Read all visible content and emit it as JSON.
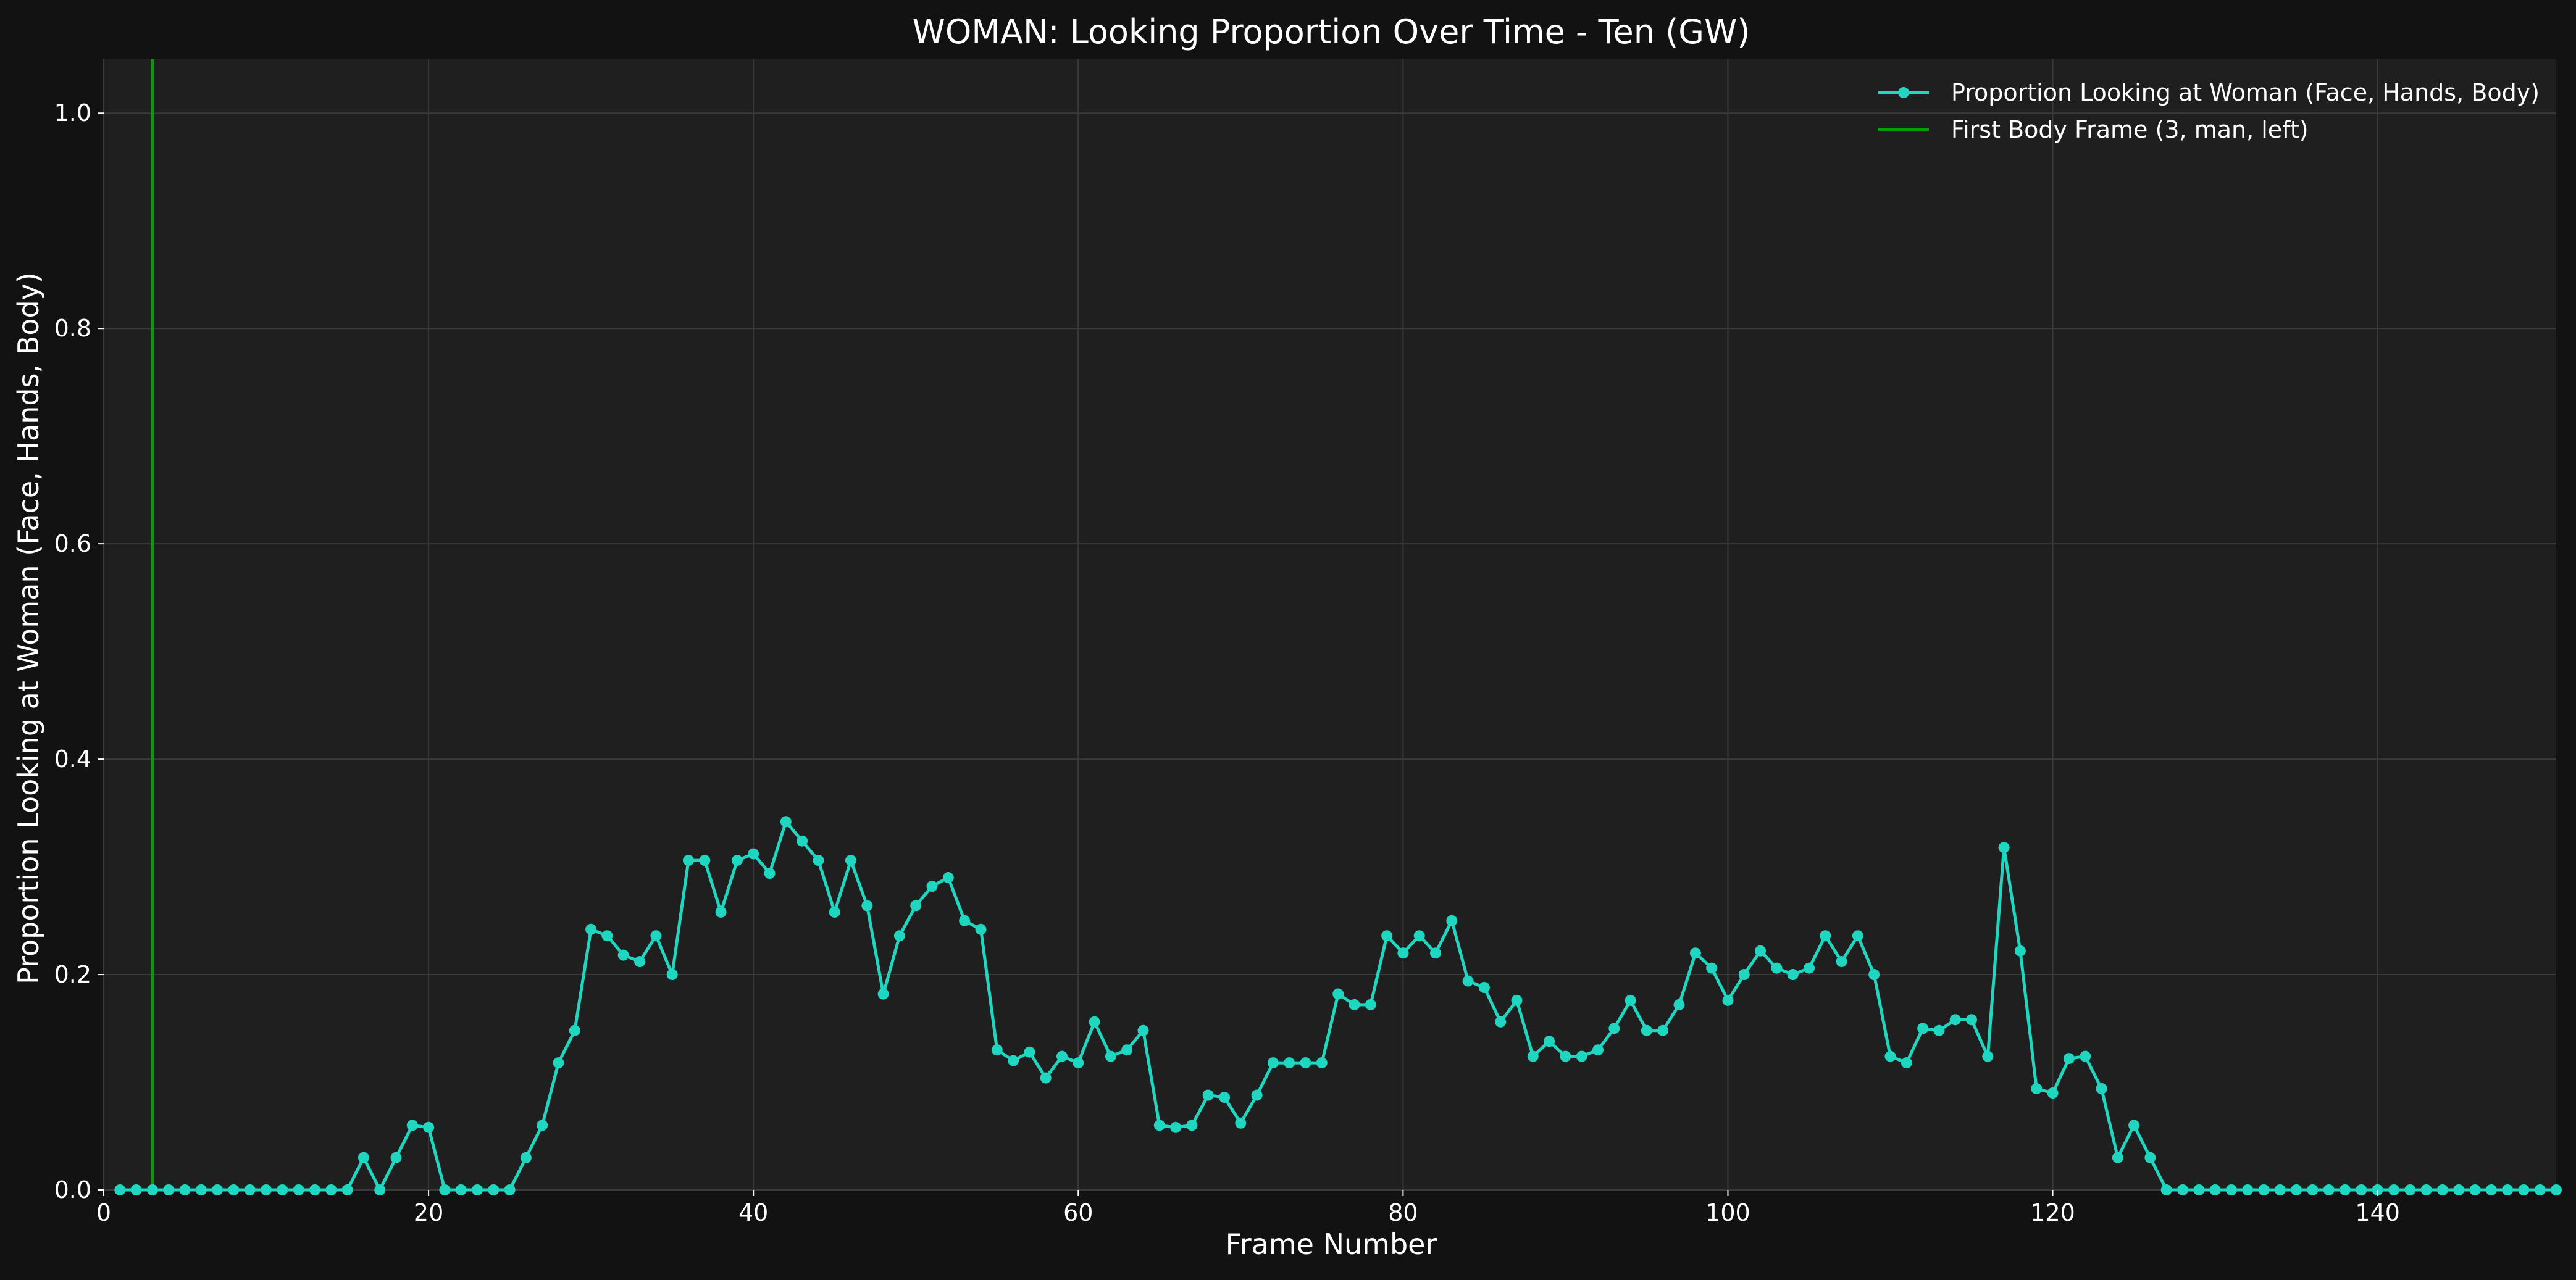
{
  "chart_data": {
    "type": "line",
    "title": "WOMAN: Looking Proportion Over Time - Ten (GW)",
    "xlabel": "Frame Number",
    "ylabel": "Proportion Looking at Woman (Face, Hands, Body)",
    "xlim": [
      0,
      151
    ],
    "ylim": [
      0,
      1.05
    ],
    "xticks": [
      0,
      20,
      40,
      60,
      80,
      100,
      120,
      140
    ],
    "yticks": [
      0.0,
      0.2,
      0.4,
      0.6,
      0.8,
      1.0
    ],
    "xtick_labels": [
      "0",
      "20",
      "40",
      "60",
      "80",
      "100",
      "120",
      "140"
    ],
    "ytick_labels": [
      "0.0",
      "0.2",
      "0.4",
      "0.6",
      "0.8",
      "1.0"
    ],
    "grid": true,
    "legend_position": "top-right",
    "colors": {
      "background": "#121212",
      "plot_background": "#1f1f1f",
      "series": "#1fd6c1",
      "vline": "#00a000"
    },
    "series": [
      {
        "name": "Proportion Looking at Woman (Face, Hands, Body)",
        "x": [
          1,
          2,
          3,
          4,
          5,
          6,
          7,
          8,
          9,
          10,
          11,
          12,
          13,
          14,
          15,
          16,
          17,
          18,
          19,
          20,
          21,
          22,
          23,
          24,
          25,
          26,
          27,
          28,
          29,
          30,
          31,
          32,
          33,
          34,
          35,
          36,
          37,
          38,
          39,
          40,
          41,
          42,
          43,
          44,
          45,
          46,
          47,
          48,
          49,
          50,
          51,
          52,
          53,
          54,
          55,
          56,
          57,
          58,
          59,
          60,
          61,
          62,
          63,
          64,
          65,
          66,
          67,
          68,
          69,
          70,
          71,
          72,
          73,
          74,
          75,
          76,
          77,
          78,
          79,
          80,
          81,
          82,
          83,
          84,
          85,
          86,
          87,
          88,
          89,
          90,
          91,
          92,
          93,
          94,
          95,
          96,
          97,
          98,
          99,
          100,
          101,
          102,
          103,
          104,
          105,
          106,
          107,
          108,
          109,
          110,
          111,
          112,
          113,
          114,
          115,
          116,
          117,
          118,
          119,
          120,
          121,
          122,
          123,
          124,
          125,
          126,
          127,
          128,
          129,
          130,
          131,
          132,
          133,
          134,
          135,
          136,
          137,
          138,
          139,
          140,
          141,
          142,
          143,
          144,
          145,
          146,
          147,
          148,
          149,
          150,
          151
        ],
        "y": [
          0,
          0,
          0,
          0,
          0,
          0,
          0,
          0,
          0,
          0,
          0,
          0,
          0,
          0,
          0,
          0.03,
          0,
          0.03,
          0.06,
          0.058,
          0,
          0,
          0,
          0,
          0,
          0.03,
          0.06,
          0.118,
          0.148,
          0.242,
          0.236,
          0.218,
          0.212,
          0.236,
          0.2,
          0.306,
          0.306,
          0.258,
          0.306,
          0.312,
          0.294,
          0.342,
          0.324,
          0.306,
          0.258,
          0.306,
          0.264,
          0.182,
          0.236,
          0.264,
          0.282,
          0.29,
          0.25,
          0.242,
          0.13,
          0.12,
          0.128,
          0.104,
          0.124,
          0.118,
          0.156,
          0.124,
          0.13,
          0.148,
          0.06,
          0.058,
          0.06,
          0.088,
          0.086,
          0.062,
          0.088,
          0.118,
          0.118,
          0.118,
          0.118,
          0.182,
          0.172,
          0.172,
          0.236,
          0.22,
          0.236,
          0.22,
          0.25,
          0.194,
          0.188,
          0.156,
          0.176,
          0.124,
          0.138,
          0.124,
          0.124,
          0.13,
          0.15,
          0.176,
          0.148,
          0.148,
          0.172,
          0.22,
          0.206,
          0.176,
          0.2,
          0.222,
          0.206,
          0.2,
          0.206,
          0.236,
          0.212,
          0.236,
          0.2,
          0.124,
          0.118,
          0.15,
          0.148,
          0.158,
          0.158,
          0.124,
          0.318,
          0.222,
          0.094,
          0.09,
          0.122,
          0.124,
          0.094,
          0.03,
          0.06,
          0.03,
          0,
          0,
          0,
          0,
          0,
          0,
          0,
          0,
          0,
          0,
          0,
          0,
          0,
          0,
          0,
          0,
          0,
          0,
          0,
          0,
          0,
          0,
          0,
          0,
          0
        ]
      }
    ],
    "vline": {
      "name": "First Body Frame (3, man, left)",
      "x": 3
    }
  }
}
